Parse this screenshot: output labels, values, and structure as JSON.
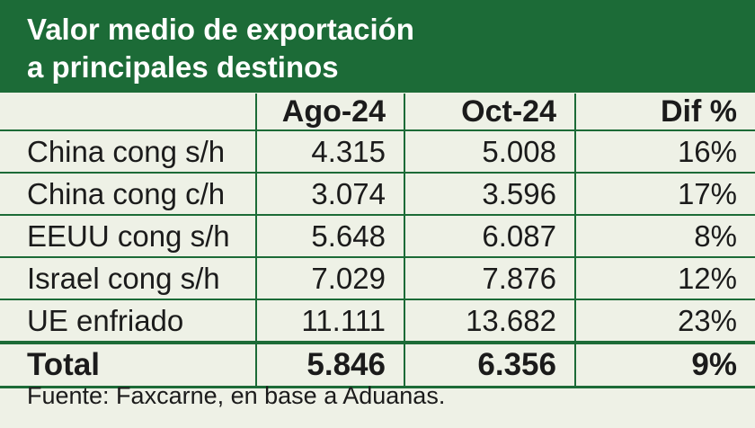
{
  "title": {
    "line1": "Valor medio de exportación",
    "line2": "a principales destinos"
  },
  "table": {
    "headers": [
      "",
      "Ago-24",
      "Oct-24",
      "Dif %"
    ],
    "rows": [
      [
        "China cong s/h",
        "4.315",
        "5.008",
        "16%"
      ],
      [
        "China cong c/h",
        "3.074",
        "3.596",
        "17%"
      ],
      [
        "EEUU cong s/h",
        "5.648",
        "6.087",
        "8%"
      ],
      [
        "Israel cong s/h",
        "7.029",
        "7.876",
        "12%"
      ],
      [
        "UE enfriado",
        "11.111",
        "13.682",
        "23%"
      ]
    ],
    "total": [
      "Total",
      "5.846",
      "6.356",
      "9%"
    ]
  },
  "source": "Fuente: Faxcarne, en base a Aduanas.",
  "colors": {
    "header_green": "#1c6b37",
    "background": "#eef1e6"
  }
}
